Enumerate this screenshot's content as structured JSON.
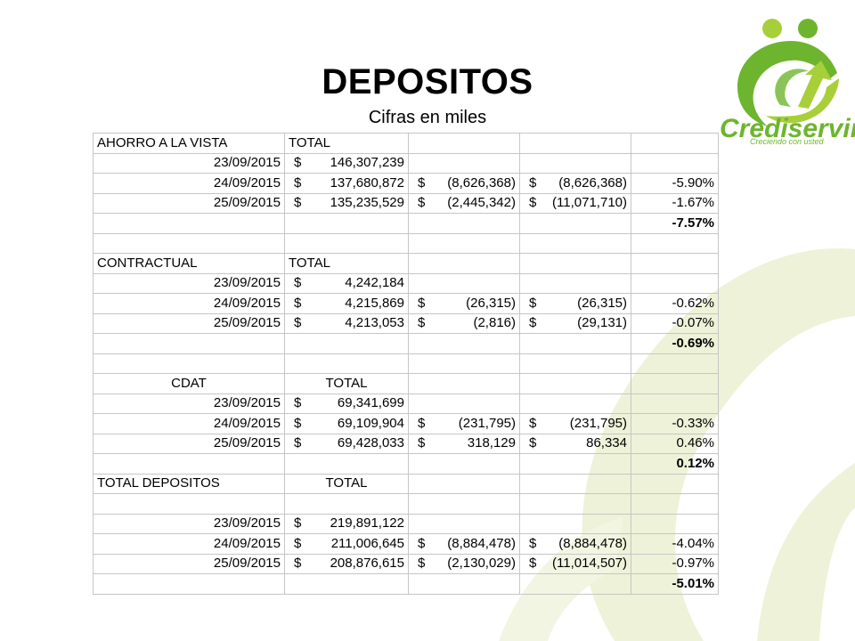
{
  "title": "DEPOSITOS",
  "subtitle": "Cifras en miles",
  "logo": {
    "brand": "Crediservir",
    "tagline": "Creciendo con usted"
  },
  "colors": {
    "brand_green": "#6db52e",
    "light_green": "#a7cf3a",
    "swirl": "#eef2d8"
  },
  "sections": [
    {
      "header": "AHORRO A LA VISTA",
      "total_label": "TOTAL",
      "header_align": "left",
      "rows": [
        {
          "date": "23/09/2015",
          "s1": "$",
          "total": "146,307,239",
          "s2": "",
          "diff": "",
          "s3": "",
          "cum": "",
          "pct": ""
        },
        {
          "date": "24/09/2015",
          "s1": "$",
          "total": "137,680,872",
          "s2": "$",
          "diff": "(8,626,368)",
          "s3": "$",
          "cum": "(8,626,368)",
          "pct": "-5.90%"
        },
        {
          "date": "25/09/2015",
          "s1": "$",
          "total": "135,235,529",
          "s2": "$",
          "diff": "(2,445,342)",
          "s3": "$",
          "cum": "(11,071,710)",
          "pct": "-1.67%"
        }
      ],
      "summary_pct": "-7.57%"
    },
    {
      "header": "CONTRACTUAL",
      "total_label": "TOTAL",
      "header_align": "left",
      "rows": [
        {
          "date": "23/09/2015",
          "s1": "$",
          "total": "4,242,184",
          "s2": "",
          "diff": "",
          "s3": "",
          "cum": "",
          "pct": ""
        },
        {
          "date": "24/09/2015",
          "s1": "$",
          "total": "4,215,869",
          "s2": "$",
          "diff": "(26,315)",
          "s3": "$",
          "cum": "(26,315)",
          "pct": "-0.62%"
        },
        {
          "date": "25/09/2015",
          "s1": "$",
          "total": "4,213,053",
          "s2": "$",
          "diff": "(2,816)",
          "s3": "$",
          "cum": "(29,131)",
          "pct": "-0.07%"
        }
      ],
      "summary_pct": "-0.69%"
    },
    {
      "header": "CDAT",
      "total_label": "TOTAL",
      "header_align": "center",
      "rows": [
        {
          "date": "23/09/2015",
          "s1": "$",
          "total": "69,341,699",
          "s2": "",
          "diff": "",
          "s3": "",
          "cum": "",
          "pct": ""
        },
        {
          "date": "24/09/2015",
          "s1": "$",
          "total": "69,109,904",
          "s2": "$",
          "diff": "(231,795)",
          "s3": "$",
          "cum": "(231,795)",
          "pct": "-0.33%"
        },
        {
          "date": "25/09/2015",
          "s1": "$",
          "total": "69,428,033",
          "s2": "$",
          "diff": "318,129",
          "s3": "$",
          "cum": "86,334",
          "pct": "0.46%"
        }
      ],
      "summary_pct": "0.12%"
    }
  ],
  "total_section": {
    "header": "TOTAL DEPOSITOS",
    "total_label": "TOTAL",
    "rows": [
      {
        "date": "23/09/2015",
        "s1": "$",
        "total": "219,891,122",
        "s2": "",
        "diff": "",
        "s3": "",
        "cum": "",
        "pct": ""
      },
      {
        "date": "24/09/2015",
        "s1": "$",
        "total": "211,006,645",
        "s2": "$",
        "diff": "(8,884,478)",
        "s3": "$",
        "cum": "(8,884,478)",
        "pct": "-4.04%"
      },
      {
        "date": "25/09/2015",
        "s1": "$",
        "total": "208,876,615",
        "s2": "$",
        "diff": "(2,130,029)",
        "s3": "$",
        "cum": "(11,014,507)",
        "pct": "-0.97%"
      }
    ],
    "summary_pct": "-5.01%"
  }
}
